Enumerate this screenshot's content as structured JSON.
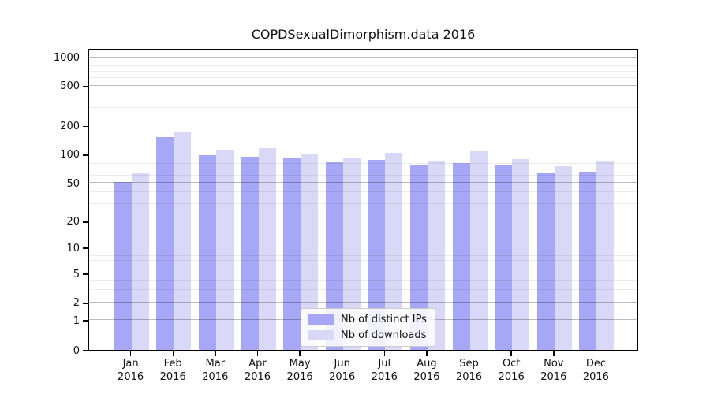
{
  "figure": {
    "title": "COPDSexualDimorphism.data 2016"
  },
  "chart_data": {
    "type": "bar",
    "title": "COPDSexualDimorphism.data 2016",
    "xlabel": "",
    "ylabel": "",
    "yscale": "symlog-like (0 baseline, log above 1)",
    "grid": "on (major gray, minor faint, drawn over bars)",
    "categories": [
      "Jan 2016",
      "Feb 2016",
      "Mar 2016",
      "Apr 2016",
      "May 2016",
      "Jun 2016",
      "Jul 2016",
      "Aug 2016",
      "Sep 2016",
      "Oct 2016",
      "Nov 2016",
      "Dec 2016"
    ],
    "x_tick_months": [
      "Jan",
      "Feb",
      "Mar",
      "Apr",
      "May",
      "Jun",
      "Jul",
      "Aug",
      "Sep",
      "Oct",
      "Nov",
      "Dec"
    ],
    "x_tick_year": "2016",
    "series": [
      {
        "name": "Nb of distinct IPs",
        "color": "#a7a7f7",
        "values": [
          51,
          152,
          97,
          95,
          91,
          84,
          87,
          76,
          81,
          78,
          63,
          66
        ]
      },
      {
        "name": "Nb of downloads",
        "color": "#d9d9f7",
        "values": [
          64,
          172,
          112,
          117,
          99,
          91,
          103,
          85,
          110,
          89,
          75,
          85
        ]
      }
    ],
    "y_ticks": [
      {
        "label": "0",
        "value": 0,
        "pos": 0.0
      },
      {
        "label": "1",
        "value": 1,
        "pos": 0.099
      },
      {
        "label": "2",
        "value": 2,
        "pos": 0.157
      },
      {
        "label": "5",
        "value": 5,
        "pos": 0.253
      },
      {
        "label": "10",
        "value": 10,
        "pos": 0.339
      },
      {
        "label": "20",
        "value": 20,
        "pos": 0.426
      },
      {
        "label": "50",
        "value": 50,
        "pos": 0.553
      },
      {
        "label": "100",
        "value": 100,
        "pos": 0.648
      },
      {
        "label": "200",
        "value": 200,
        "pos": 0.743
      },
      {
        "label": "500",
        "value": 500,
        "pos": 0.875
      },
      {
        "label": "1000",
        "value": 1000,
        "pos": 0.97
      }
    ],
    "y_minor_gridlines": [
      3,
      4,
      6,
      7,
      8,
      9,
      30,
      40,
      60,
      70,
      80,
      90,
      300,
      400,
      600,
      700,
      800,
      900
    ],
    "legend": {
      "position": "lower-center",
      "entries": [
        "Nb of distinct IPs",
        "Nb of downloads"
      ]
    }
  },
  "colors": {
    "distinct_ips_bar": "#a7a7f7",
    "downloads_bar": "#d9d9f7",
    "major_gridline": "rgba(0,0,0,0.26)",
    "minor_gridline": "rgba(0,0,0,0.08)",
    "axis_frame": "#000000",
    "text": "#111111",
    "legend_border": "#cccccc",
    "legend_background": "rgba(255,255,255,0.85)"
  }
}
